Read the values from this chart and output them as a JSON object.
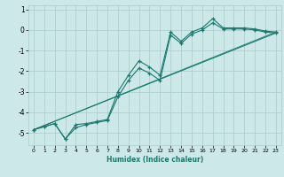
{
  "xlabel": "Humidex (Indice chaleur)",
  "bg_color": "#cce8e8",
  "grid_color": "#aacccc",
  "line_color": "#1a7a6e",
  "xlim": [
    -0.5,
    23.5
  ],
  "ylim": [
    -5.6,
    1.2
  ],
  "xticks": [
    0,
    1,
    2,
    3,
    4,
    5,
    6,
    7,
    8,
    9,
    10,
    11,
    12,
    13,
    14,
    15,
    16,
    17,
    18,
    19,
    20,
    21,
    22,
    23
  ],
  "yticks": [
    -5,
    -4,
    -3,
    -2,
    -1,
    0,
    1
  ],
  "series1_x": [
    0,
    1,
    2,
    3,
    4,
    5,
    6,
    7,
    8,
    9,
    10,
    11,
    12,
    13,
    14,
    15,
    16,
    17,
    18,
    19,
    20,
    21,
    22,
    23
  ],
  "series1_y": [
    -4.85,
    -4.7,
    -4.55,
    -5.3,
    -4.6,
    -4.55,
    -4.45,
    -4.35,
    -3.0,
    -2.2,
    -1.5,
    -1.8,
    -2.2,
    -0.1,
    -0.55,
    -0.1,
    0.1,
    0.55,
    0.1,
    0.1,
    0.1,
    0.05,
    -0.05,
    -0.1
  ],
  "series2_x": [
    0,
    1,
    2,
    3,
    4,
    5,
    6,
    7,
    8,
    9,
    10,
    11,
    12,
    13,
    14,
    15,
    16,
    17,
    18,
    19,
    20,
    21,
    22,
    23
  ],
  "series2_y": [
    -4.85,
    -4.7,
    -4.55,
    -5.3,
    -4.75,
    -4.6,
    -4.5,
    -4.4,
    -3.25,
    -2.45,
    -1.85,
    -2.1,
    -2.45,
    -0.25,
    -0.65,
    -0.2,
    0.0,
    0.35,
    0.05,
    0.05,
    0.05,
    0.0,
    -0.1,
    -0.15
  ],
  "line3_x": [
    0,
    23
  ],
  "line3_y": [
    -4.85,
    -0.1
  ],
  "line4_x": [
    0,
    23
  ],
  "line4_y": [
    -4.85,
    -0.15
  ]
}
